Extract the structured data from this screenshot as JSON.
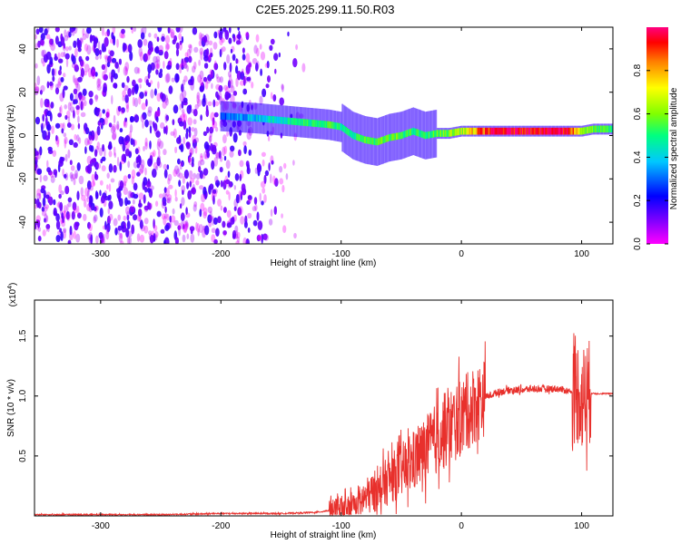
{
  "title": "C2E5.2025.299.11.50.R03",
  "chart_data": [
    {
      "type": "heatmap",
      "title": "C2E5.2025.299.11.50.R03",
      "xlabel": "Height of straight line (km)",
      "ylabel": "Frequency (Hz)",
      "xlim": [
        -355,
        126
      ],
      "ylim": [
        -50,
        50
      ],
      "xticks": [
        -300,
        -200,
        -100,
        0,
        100
      ],
      "xtick_labels": [
        "-300",
        "-200",
        "-100",
        "0",
        "100"
      ],
      "yticks": [
        -40,
        -20,
        0,
        20,
        40
      ],
      "ytick_labels": [
        "-40",
        "-20",
        "0",
        "20",
        "40"
      ],
      "colorbar": {
        "label": "Normalized spectral amplitude",
        "range": [
          0,
          1
        ],
        "ticks": [
          0.0,
          0.2,
          0.4,
          0.6,
          0.8
        ],
        "tick_labels": [
          "0.0",
          "0.2",
          "0.4",
          "0.6",
          "0.8"
        ],
        "colormap": [
          "#ff00ff",
          "#8800ff",
          "#0000ff",
          "#00c8ff",
          "#00ff80",
          "#80ff00",
          "#ffff00",
          "#ff8000",
          "#ff0000",
          "#ff0080"
        ]
      },
      "noise_region": {
        "x": [
          -355,
          -125
        ],
        "y": [
          -50,
          50
        ],
        "amplitude": [
          0.0,
          0.2
        ]
      },
      "signal_ridge": {
        "x": [
          -200,
          -170,
          -150,
          -130,
          -110,
          -100,
          -90,
          -80,
          -70,
          -60,
          -50,
          -40,
          -30,
          -20,
          -10,
          0,
          10,
          20,
          30,
          40,
          50,
          60,
          70,
          80,
          90,
          100,
          110,
          126
        ],
        "freq": [
          9,
          8,
          7,
          6,
          5,
          4,
          0,
          -2,
          -3,
          -1,
          0,
          2,
          0,
          1,
          1,
          2,
          2,
          2,
          2,
          2,
          2,
          2,
          2,
          2,
          2,
          2,
          3,
          3
        ],
        "amplitude": [
          0.25,
          0.35,
          0.4,
          0.45,
          0.5,
          0.4,
          0.45,
          0.5,
          0.5,
          0.5,
          0.5,
          0.45,
          0.45,
          0.5,
          0.55,
          0.6,
          0.7,
          0.85,
          0.9,
          0.95,
          0.95,
          0.95,
          0.95,
          0.95,
          0.9,
          0.6,
          0.5,
          0.45
        ]
      }
    },
    {
      "type": "line",
      "xlabel": "Height of straight line (km)",
      "ylabel": "SNR (10 * v/v)",
      "y_multiplier": "(x10^4)",
      "y_multiplier_base": "(x10",
      "y_multiplier_exp": "4",
      "y_multiplier_close": ")",
      "xlim": [
        -355,
        126
      ],
      "ylim": [
        0,
        1.8
      ],
      "xticks": [
        -300,
        -200,
        -100,
        0,
        100
      ],
      "xtick_labels": [
        "-300",
        "-200",
        "-100",
        "0",
        "100"
      ],
      "yticks": [
        0.5,
        1.0,
        1.5
      ],
      "ytick_labels": [
        "0.5",
        "1.0",
        "1.5"
      ],
      "series": [
        {
          "name": "SNR",
          "color": "#e8302c",
          "x": [
            -355,
            -300,
            -250,
            -200,
            -150,
            -120,
            -100,
            -90,
            -80,
            -70,
            -60,
            -50,
            -40,
            -30,
            -20,
            -10,
            0,
            10,
            20,
            30,
            40,
            50,
            60,
            70,
            80,
            85,
            90,
            95,
            98,
            100,
            102,
            105,
            110,
            126
          ],
          "y": [
            0.01,
            0.01,
            0.01,
            0.02,
            0.02,
            0.03,
            0.06,
            0.1,
            0.15,
            0.22,
            0.3,
            0.38,
            0.45,
            0.55,
            0.65,
            0.74,
            0.82,
            0.92,
            0.99,
            1.03,
            1.05,
            1.05,
            1.06,
            1.06,
            1.06,
            1.05,
            1.04,
            1.02,
            1.05,
            0.95,
            1.0,
            1.03,
            1.02,
            1.02
          ]
        }
      ]
    }
  ]
}
